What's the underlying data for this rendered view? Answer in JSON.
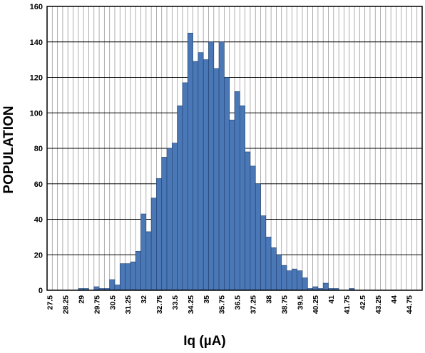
{
  "chart_data": {
    "type": "bar",
    "title": "",
    "xlabel": "Iq (µA)",
    "ylabel": "POPULATION",
    "ylim": [
      0,
      160
    ],
    "yticks": [
      "0",
      "20",
      "40",
      "60",
      "80",
      "100",
      "120",
      "140",
      "160"
    ],
    "xtick_labels": [
      "27.5",
      "28.25",
      "29",
      "29.75",
      "30.5",
      "31.25",
      "32",
      "32.75",
      "33.5",
      "34.25",
      "35",
      "35.75",
      "36.5",
      "37.25",
      "38",
      "38.75",
      "39.5",
      "40.25",
      "41",
      "41.75",
      "42.5",
      "43.25",
      "44",
      "44.75"
    ],
    "bin_start": 27.5,
    "bin_width": 0.25,
    "values": [
      0,
      0,
      0,
      0,
      0,
      0,
      1,
      1,
      0,
      2,
      1,
      1,
      6,
      3,
      15,
      15,
      16,
      22,
      43,
      33,
      52,
      63,
      75,
      80,
      83,
      104,
      117,
      145,
      129,
      134,
      130,
      140,
      125,
      140,
      120,
      96,
      112,
      104,
      78,
      70,
      60,
      42,
      30,
      24,
      20,
      14,
      11,
      12,
      11,
      7,
      1,
      2,
      1,
      4,
      1,
      1,
      0,
      0,
      1,
      0,
      0,
      0,
      0,
      0,
      0,
      0,
      0,
      0,
      0,
      0,
      0,
      0
    ],
    "bar_color": "#4a78b6",
    "grid": true
  }
}
